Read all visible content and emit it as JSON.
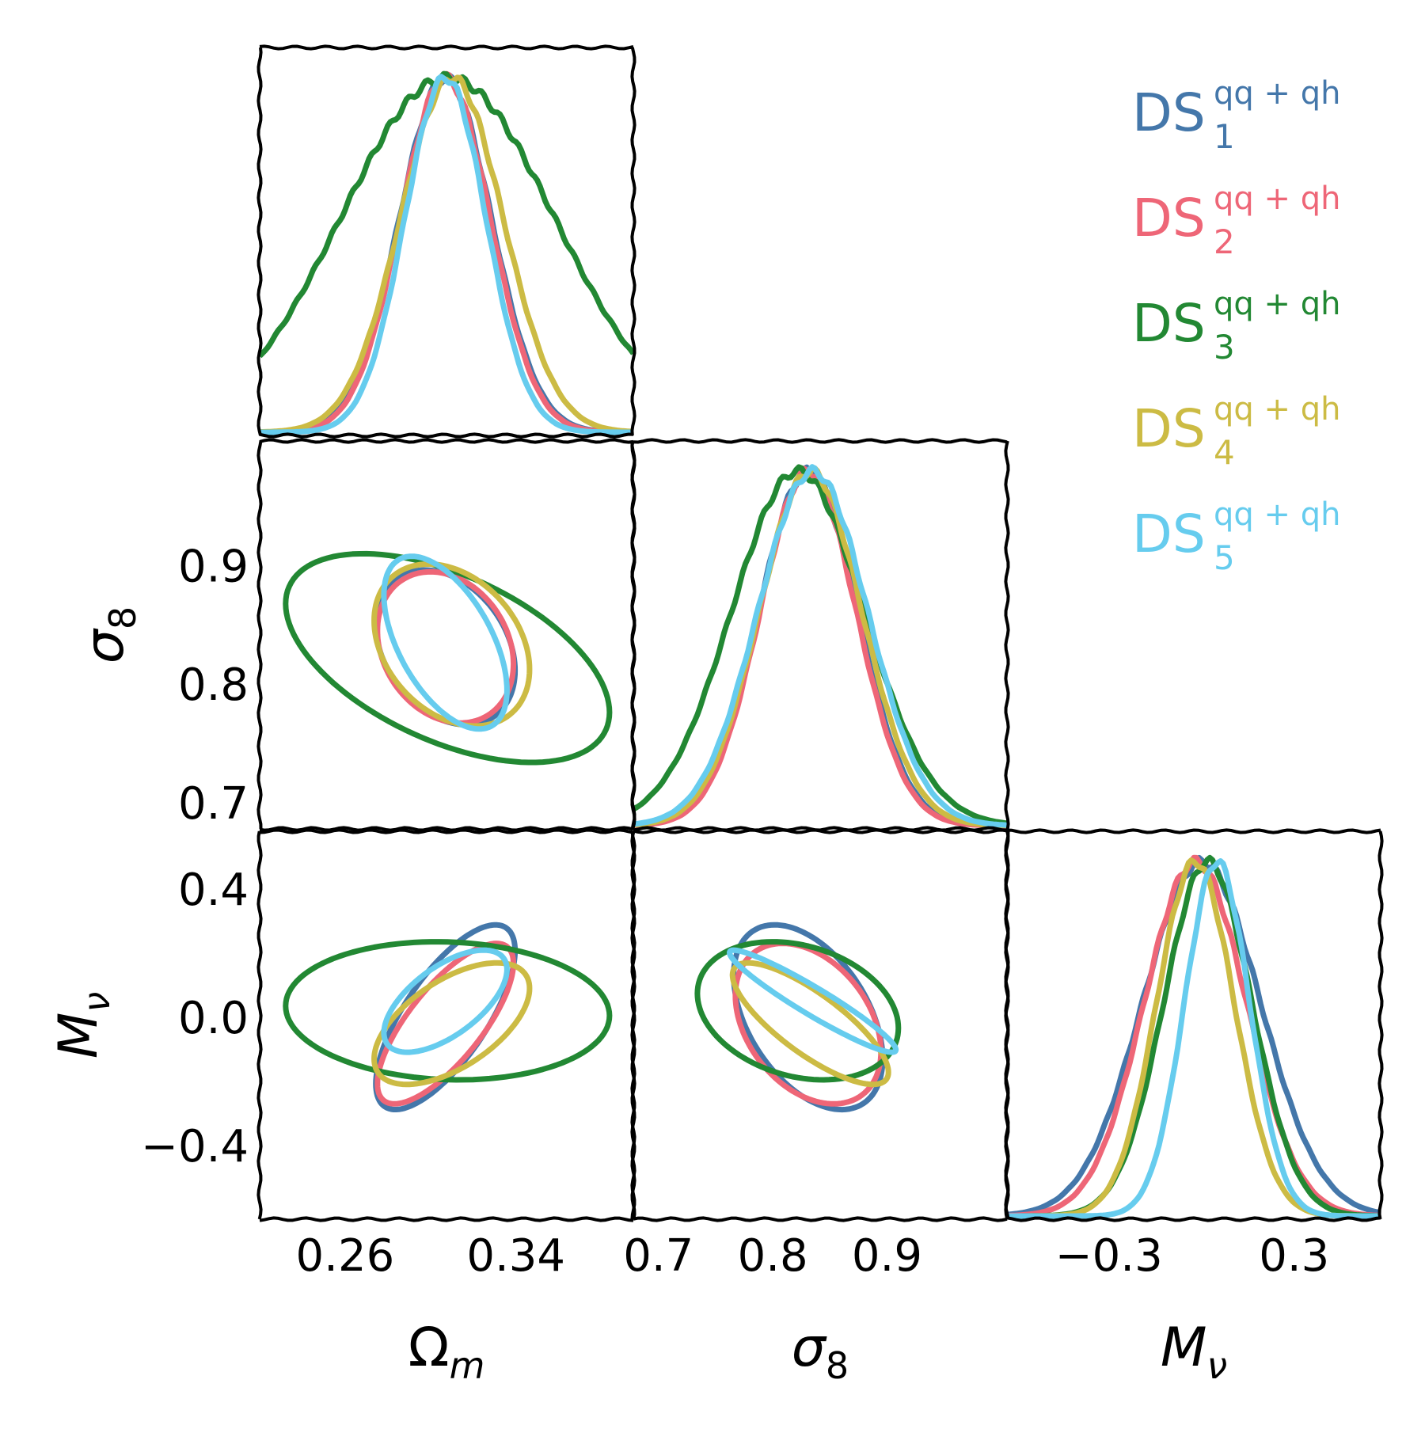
{
  "chart_data": {
    "type": "corner",
    "params": [
      {
        "label": "Ω",
        "label_sub": "m",
        "range": [
          0.22,
          0.395
        ],
        "ticks": [
          {
            "v": 0.26,
            "t": "0.26"
          },
          {
            "v": 0.34,
            "t": "0.34"
          }
        ]
      },
      {
        "label": "σ",
        "label_sub": "8",
        "range": [
          0.678,
          1.005
        ],
        "ticks": [
          {
            "v": 0.7,
            "t": "0.7"
          },
          {
            "v": 0.8,
            "t": "0.8"
          },
          {
            "v": 0.9,
            "t": "0.9"
          }
        ]
      },
      {
        "label": "M",
        "label_sub": "ν",
        "range": [
          -0.63,
          0.58
        ],
        "ticks": [
          {
            "v": -0.4,
            "t": "−0.4"
          },
          {
            "v": 0.0,
            "t": "0.0"
          },
          {
            "v": 0.4,
            "t": "0.4"
          }
        ]
      }
    ],
    "x_tick_overrides": {
      "2": [
        {
          "v": -0.3,
          "t": "−0.3"
        },
        {
          "v": 0.3,
          "t": "0.3"
        }
      ]
    },
    "legend_placement": "top-right",
    "series": [
      {
        "name": "DS",
        "sub": "1",
        "sup": "qq + qh",
        "color": "#4477AA",
        "mean": [
          0.307,
          0.831,
          0.0
        ],
        "sigma": [
          0.0215,
          0.043,
          0.19
        ],
        "corr": {
          "0-1": -0.3,
          "0-2": 0.72,
          "1-2": -0.45
        }
      },
      {
        "name": "DS",
        "sub": "2",
        "sup": "qq + qh",
        "color": "#EE6677",
        "mean": [
          0.307,
          0.831,
          -0.02
        ],
        "sigma": [
          0.021,
          0.042,
          0.165
        ],
        "corr": {
          "0-1": -0.22,
          "0-2": 0.75,
          "1-2": -0.35
        }
      },
      {
        "name": "DS",
        "sub": "3",
        "sup": "qq + qh",
        "color": "#228833",
        "mean": [
          0.308,
          0.822,
          0.02
        ],
        "sigma": [
          0.05,
          0.058,
          0.142
        ],
        "corr": {
          "0-1": -0.52,
          "0-2": -0.07,
          "1-2": -0.25
        }
      },
      {
        "name": "DS",
        "sub": "4",
        "sup": "qq + qh",
        "color": "#CCBB44",
        "mean": [
          0.31,
          0.833,
          -0.02
        ],
        "sigma": [
          0.024,
          0.045,
          0.125
        ],
        "corr": {
          "0-1": -0.3,
          "0-2": 0.58,
          "1-2": -0.8
        }
      },
      {
        "name": "DS",
        "sub": "5",
        "sup": "qq + qh",
        "color": "#66CCEE",
        "mean": [
          0.307,
          0.835,
          0.05
        ],
        "sigma": [
          0.019,
          0.048,
          0.105
        ],
        "corr": {
          "0-1": -0.55,
          "0-2": 0.62,
          "1-2": -0.95
        }
      }
    ]
  }
}
